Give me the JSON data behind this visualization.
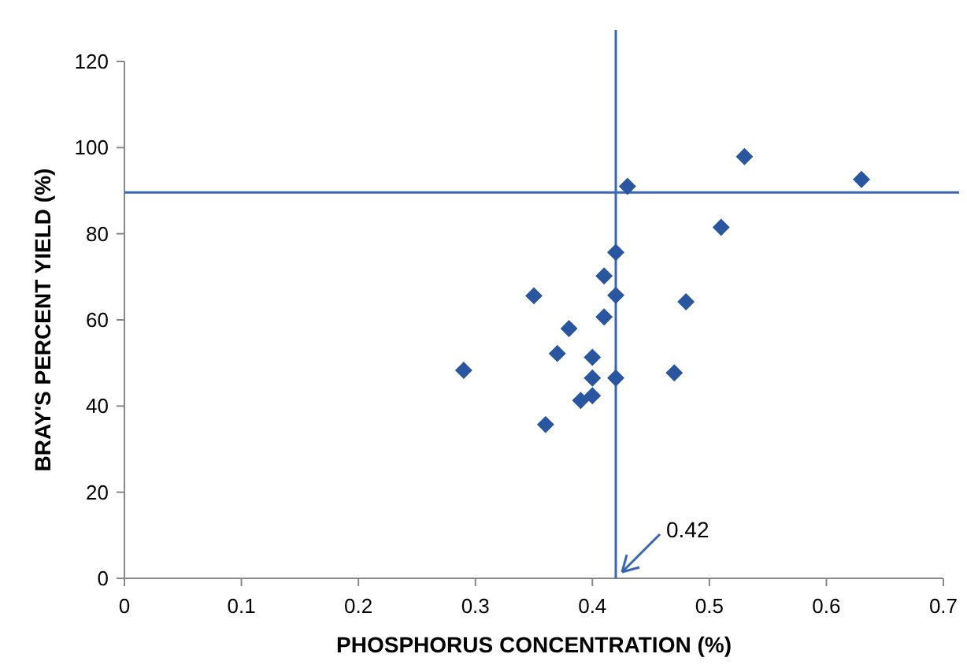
{
  "chart_data": {
    "type": "scatter",
    "xlabel": "PHOSPHORUS CONCENTRATION (%)",
    "ylabel": "BRAY'S PERCENT YIELD (%)",
    "x": [
      0.53,
      0.63,
      0.43,
      0.51,
      0.42,
      0.41,
      0.35,
      0.42,
      0.48,
      0.41,
      0.38,
      0.37,
      0.4,
      0.29,
      0.47,
      0.4,
      0.42,
      0.4,
      0.39,
      0.36
    ],
    "series": [
      {
        "color": "#2a56a0",
        "values": [
          97.9,
          92.6,
          91,
          81.5,
          75.7,
          70.2,
          65.6,
          65.7,
          64.2,
          60.7,
          58,
          52.2,
          51.3,
          48.3,
          47.7,
          46.5,
          46.5,
          42.4,
          41.3,
          35.7
        ]
      }
    ],
    "marker": "diamond",
    "xlim": [
      0,
      0.7
    ],
    "ylim": [
      0,
      120
    ],
    "xticks": [
      0,
      0.1,
      0.2,
      0.3,
      0.4,
      0.5,
      0.6,
      0.7
    ],
    "yticks": [
      0,
      20,
      40,
      60,
      80,
      100,
      120
    ],
    "ref_lines": [
      {
        "axis": "x",
        "value": 0.42,
        "color": "#3a64b4",
        "label": "0.42"
      },
      {
        "axis": "y",
        "value": 89.6,
        "color": "#3a64b4"
      }
    ]
  }
}
